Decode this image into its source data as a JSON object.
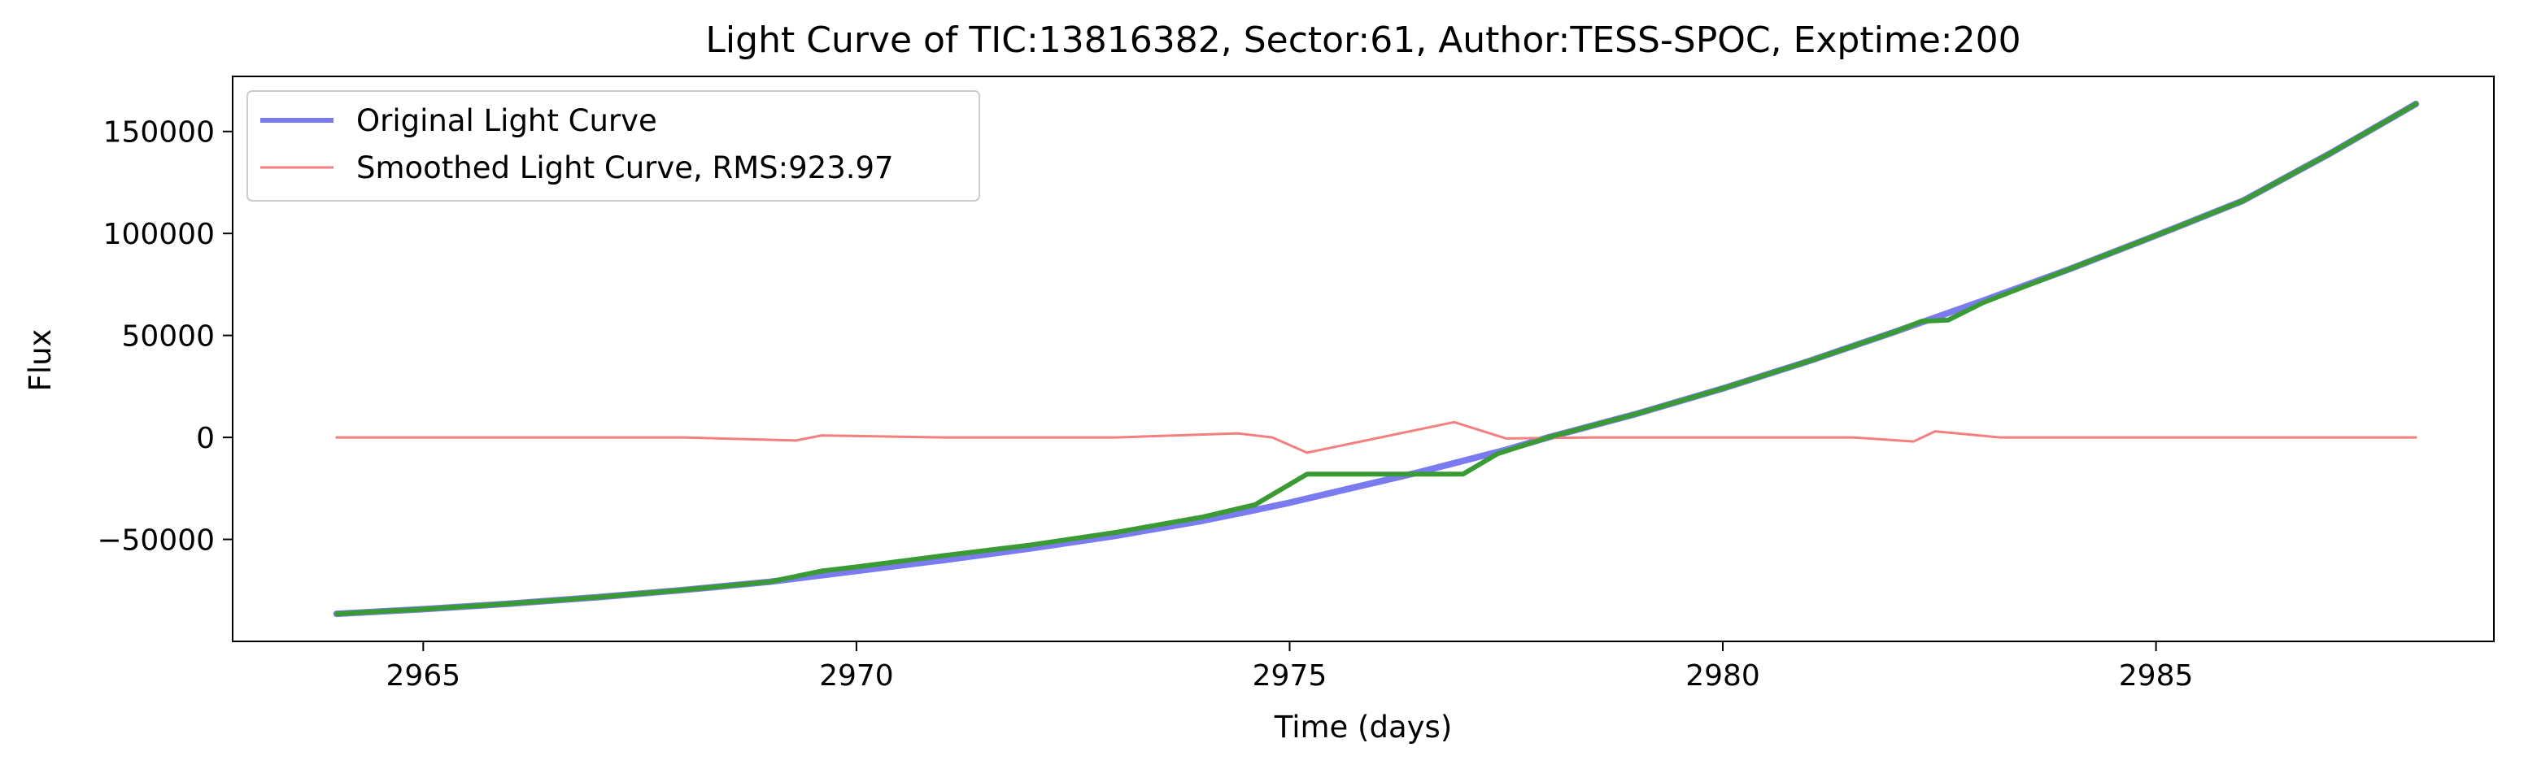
{
  "chart_data": {
    "type": "line",
    "title": "Light Curve of TIC:13816382, Sector:61, Author:TESS-SPOC, Exptime:200",
    "xlabel": "Time (days)",
    "ylabel": "Flux",
    "xlim": [
      2962.8,
      2988.9
    ],
    "ylim": [
      -100000,
      177000
    ],
    "xticks": [
      2965,
      2970,
      2975,
      2980,
      2985
    ],
    "xtick_labels": [
      "2965",
      "2970",
      "2975",
      "2980",
      "2985"
    ],
    "yticks": [
      -50000,
      0,
      50000,
      100000,
      150000
    ],
    "ytick_labels": [
      "−50000",
      "0",
      "50000",
      "100000",
      "150000"
    ],
    "grid": false,
    "legend_position": "top-left",
    "series": [
      {
        "name": "Original Light Curve",
        "color": "#7b7bf0",
        "x": [
          2964.0,
          2965,
          2966,
          2967,
          2968,
          2969,
          2970,
          2971,
          2972,
          2973,
          2974,
          2974.5,
          2975,
          2975.5,
          2976,
          2976.5,
          2977,
          2977.5,
          2978,
          2979,
          2980,
          2981,
          2982,
          2983,
          2984,
          2985,
          2986,
          2987,
          2988.0
        ],
        "y": [
          -86500,
          -84200,
          -81500,
          -78400,
          -74800,
          -70800,
          -65500,
          -60200,
          -54500,
          -48200,
          -40800,
          -36500,
          -32000,
          -27000,
          -22000,
          -17000,
          -11500,
          -6000,
          200,
          11500,
          24000,
          37500,
          52000,
          67000,
          82500,
          99000,
          116000,
          139000,
          163500
        ]
      },
      {
        "name": "Smoothed Light Curve, RMS:923.97",
        "color": "#f37f7f",
        "x": [
          2964.0,
          2966,
          2968,
          2969.3,
          2969.6,
          2971,
          2973,
          2974.4,
          2974.8,
          2975.2,
          2976.9,
          2977.5,
          2978.5,
          2980,
          2981.5,
          2982.2,
          2982.45,
          2983.2,
          2985,
          2988.0
        ],
        "y": [
          0,
          0,
          0,
          -1500,
          1000,
          0,
          0,
          2000,
          0,
          -7500,
          7500,
          -500,
          0,
          0,
          0,
          -2000,
          3000,
          0,
          0,
          0
        ]
      },
      {
        "name": "",
        "color": "#3a9a33",
        "x": [
          2964.0,
          2965,
          2966,
          2967,
          2968,
          2969,
          2969.6,
          2970,
          2971,
          2972,
          2973,
          2974,
          2974.6,
          2975.2,
          2977.0,
          2977.4,
          2978,
          2979,
          2980,
          2981,
          2982,
          2982.3,
          2982.6,
          2983,
          2984,
          2985,
          2986,
          2987,
          2988.0
        ],
        "y": [
          -86500,
          -84200,
          -81500,
          -78400,
          -74800,
          -70800,
          -65500,
          -63500,
          -58000,
          -52800,
          -46500,
          -39000,
          -33000,
          -18000,
          -18000,
          -8000,
          200,
          11500,
          24000,
          37500,
          52000,
          57000,
          57500,
          66000,
          82500,
          99000,
          116000,
          139000,
          163500
        ]
      }
    ]
  }
}
